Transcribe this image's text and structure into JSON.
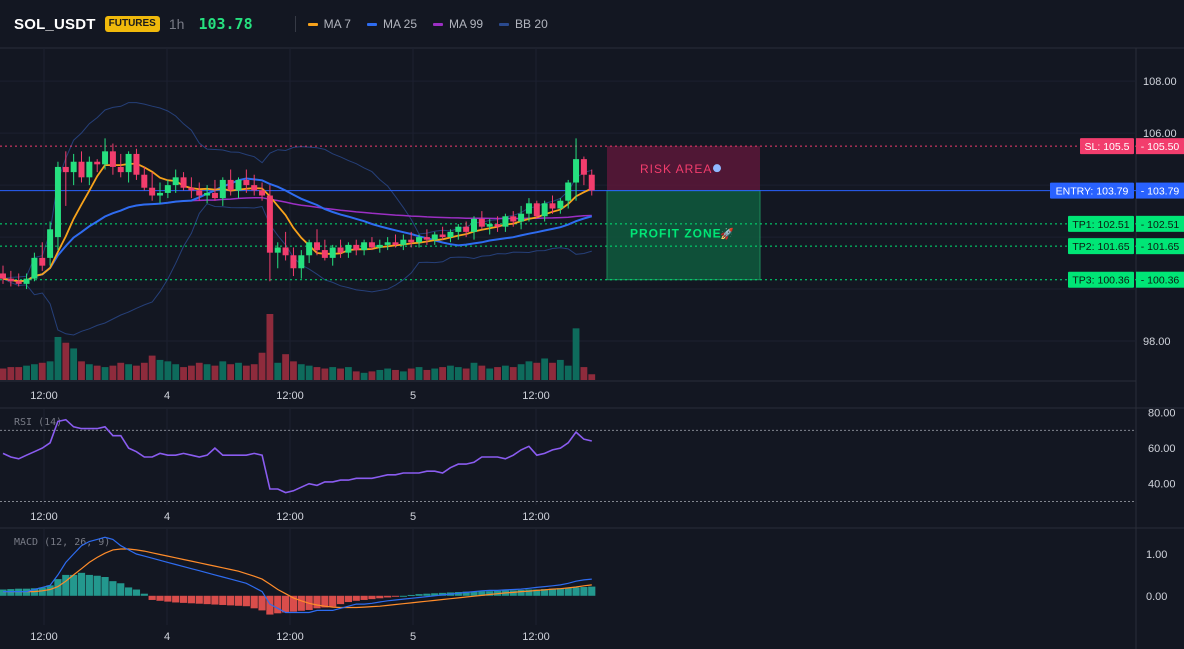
{
  "header": {
    "symbol": "SOL_USDT",
    "badge": "FUTURES",
    "interval": "1h",
    "last_price": "103.78",
    "indicators": [
      {
        "label": "MA 7",
        "color": "#f7a21b"
      },
      {
        "label": "MA 25",
        "color": "#2e6cf0"
      },
      {
        "label": "MA 99",
        "color": "#9c2fc4"
      },
      {
        "label": "BB 20",
        "color": "#2a4a8f"
      }
    ]
  },
  "main_pane": {
    "price_ticks": [
      "108.00",
      "106.00",
      "98.00"
    ],
    "x_ticks": [
      "12:00",
      "4",
      "12:00",
      "5",
      "12:00"
    ],
    "zones": {
      "risk_label": "RISK AREA",
      "profit_label": "PROFIT ZONE"
    },
    "levels": [
      {
        "key": "sl",
        "label": "SL: 105.5",
        "value": "105.50",
        "price": 105.5,
        "color": "#f23d6d",
        "text_color": "#ffffff"
      },
      {
        "key": "entry",
        "label": "ENTRY: 103.79",
        "value": "103.79",
        "price": 103.79,
        "color": "#2962ff",
        "text_color": "#ffffff"
      },
      {
        "key": "tp1",
        "label": "TP1: 102.51",
        "value": "102.51",
        "price": 102.51,
        "color": "#00e676",
        "text_color": "#0d1a12"
      },
      {
        "key": "tp2",
        "label": "TP2: 101.65",
        "value": "101.65",
        "price": 101.65,
        "color": "#00e676",
        "text_color": "#0d1a12"
      },
      {
        "key": "tp3",
        "label": "TP3: 100.36",
        "value": "100.36",
        "price": 100.36,
        "color": "#00e676",
        "text_color": "#0d1a12"
      }
    ]
  },
  "rsi_pane": {
    "title": "RSI (14)",
    "ticks": [
      "80.00",
      "60.00",
      "40.00"
    ],
    "x_ticks": [
      "12:00",
      "4",
      "12:00",
      "5",
      "12:00"
    ]
  },
  "macd_pane": {
    "title": "MACD (12, 26, 9)",
    "ticks": [
      "1.00",
      "0.00"
    ],
    "x_ticks": [
      "12:00",
      "4",
      "12:00",
      "5",
      "12:00"
    ]
  },
  "chart_data": {
    "type": "candlestick",
    "price_range": [
      96.5,
      109.2
    ],
    "candles": [
      [
        100.6,
        100.9,
        100.2,
        100.4
      ],
      [
        100.4,
        100.7,
        100.1,
        100.3
      ],
      [
        100.3,
        100.6,
        100.1,
        100.2
      ],
      [
        100.2,
        100.6,
        100.0,
        100.4
      ],
      [
        100.4,
        101.4,
        100.3,
        101.2
      ],
      [
        101.2,
        101.8,
        100.7,
        100.9
      ],
      [
        101.2,
        102.6,
        100.9,
        102.3
      ],
      [
        102.0,
        104.9,
        101.5,
        104.7
      ],
      [
        104.7,
        105.3,
        103.2,
        104.5
      ],
      [
        104.5,
        105.2,
        104.0,
        104.9
      ],
      [
        104.9,
        105.3,
        104.1,
        104.3
      ],
      [
        104.3,
        105.1,
        104.0,
        104.9
      ],
      [
        104.9,
        105.0,
        104.5,
        104.8
      ],
      [
        104.8,
        105.8,
        104.6,
        105.3
      ],
      [
        105.3,
        105.6,
        104.4,
        104.7
      ],
      [
        104.7,
        105.2,
        104.3,
        104.5
      ],
      [
        104.5,
        105.3,
        104.1,
        105.2
      ],
      [
        105.2,
        105.4,
        104.2,
        104.4
      ],
      [
        104.4,
        104.7,
        103.8,
        103.9
      ],
      [
        103.9,
        104.5,
        103.4,
        103.6
      ],
      [
        103.6,
        104.1,
        103.3,
        103.7
      ],
      [
        103.7,
        104.2,
        103.5,
        104.0
      ],
      [
        104.0,
        104.6,
        103.7,
        104.3
      ],
      [
        104.3,
        104.5,
        103.8,
        103.9
      ],
      [
        103.9,
        104.3,
        103.5,
        103.8
      ],
      [
        103.8,
        104.1,
        103.4,
        103.6
      ],
      [
        103.6,
        104.0,
        103.3,
        103.7
      ],
      [
        103.7,
        104.2,
        103.4,
        103.5
      ],
      [
        103.5,
        104.3,
        103.2,
        104.2
      ],
      [
        104.2,
        104.6,
        103.6,
        103.8
      ],
      [
        103.8,
        104.3,
        103.5,
        104.2
      ],
      [
        104.2,
        104.6,
        103.7,
        104.0
      ],
      [
        104.0,
        104.4,
        103.6,
        103.8
      ],
      [
        103.8,
        104.1,
        103.4,
        103.6
      ],
      [
        103.6,
        104.0,
        100.3,
        101.4
      ],
      [
        101.4,
        101.8,
        100.8,
        101.6
      ],
      [
        101.6,
        102.2,
        101.1,
        101.3
      ],
      [
        101.3,
        101.6,
        100.5,
        100.8
      ],
      [
        100.8,
        101.5,
        100.4,
        101.3
      ],
      [
        101.3,
        101.9,
        101.0,
        101.8
      ],
      [
        101.8,
        102.3,
        101.3,
        101.5
      ],
      [
        101.5,
        101.9,
        101.1,
        101.2
      ],
      [
        101.2,
        101.7,
        100.9,
        101.6
      ],
      [
        101.6,
        101.9,
        101.2,
        101.4
      ],
      [
        101.4,
        101.8,
        101.2,
        101.7
      ],
      [
        101.7,
        101.9,
        101.3,
        101.5
      ],
      [
        101.5,
        101.9,
        101.3,
        101.8
      ],
      [
        101.8,
        102.0,
        101.5,
        101.6
      ],
      [
        101.6,
        101.9,
        101.4,
        101.7
      ],
      [
        101.7,
        102.0,
        101.5,
        101.8
      ],
      [
        101.8,
        102.1,
        101.6,
        101.7
      ],
      [
        101.7,
        102.1,
        101.5,
        101.9
      ],
      [
        101.9,
        102.2,
        101.6,
        101.8
      ],
      [
        101.8,
        102.1,
        101.6,
        102.0
      ],
      [
        102.0,
        102.3,
        101.7,
        101.9
      ],
      [
        101.9,
        102.2,
        101.7,
        102.1
      ],
      [
        102.1,
        102.4,
        101.9,
        102.0
      ],
      [
        102.0,
        102.3,
        101.8,
        102.2
      ],
      [
        102.2,
        102.5,
        101.9,
        102.4
      ],
      [
        102.4,
        102.6,
        102.0,
        102.2
      ],
      [
        102.2,
        102.8,
        101.9,
        102.7
      ],
      [
        102.7,
        103.0,
        102.3,
        102.4
      ],
      [
        102.4,
        102.7,
        102.1,
        102.5
      ],
      [
        102.5,
        102.8,
        102.2,
        102.4
      ],
      [
        102.4,
        102.9,
        102.2,
        102.8
      ],
      [
        102.8,
        103.0,
        102.4,
        102.6
      ],
      [
        102.6,
        103.2,
        102.3,
        102.9
      ],
      [
        102.9,
        103.5,
        102.6,
        103.3
      ],
      [
        103.3,
        103.4,
        102.7,
        102.8
      ],
      [
        102.8,
        103.4,
        102.6,
        103.3
      ],
      [
        103.3,
        103.6,
        102.9,
        103.1
      ],
      [
        103.1,
        103.5,
        102.9,
        103.4
      ],
      [
        103.4,
        104.2,
        103.1,
        104.1
      ],
      [
        104.1,
        105.8,
        103.4,
        105.0
      ],
      [
        105.0,
        105.1,
        104.0,
        104.4
      ],
      [
        104.4,
        104.6,
        103.6,
        103.8
      ]
    ],
    "volume": [
      0.8,
      0.9,
      0.9,
      1.0,
      1.1,
      1.2,
      1.3,
      3.0,
      2.6,
      2.2,
      1.3,
      1.1,
      1.0,
      0.9,
      1.0,
      1.2,
      1.1,
      1.0,
      1.2,
      1.7,
      1.4,
      1.3,
      1.1,
      0.9,
      1.0,
      1.2,
      1.1,
      1.0,
      1.3,
      1.1,
      1.2,
      1.0,
      1.1,
      1.9,
      4.6,
      1.2,
      1.8,
      1.3,
      1.1,
      1.0,
      0.9,
      0.8,
      0.9,
      0.8,
      0.9,
      0.6,
      0.5,
      0.6,
      0.7,
      0.8,
      0.7,
      0.6,
      0.8,
      0.9,
      0.7,
      0.8,
      0.9,
      1.0,
      0.9,
      0.8,
      1.2,
      1.0,
      0.8,
      0.9,
      1.0,
      0.9,
      1.1,
      1.3,
      1.2,
      1.5,
      1.2,
      1.4,
      1.0,
      3.6,
      0.9,
      0.4
    ],
    "rsi": [
      57,
      55,
      54,
      56,
      58,
      60,
      63,
      75,
      76,
      72,
      71,
      71,
      71,
      72,
      67,
      67,
      60,
      58,
      55,
      55,
      57,
      56,
      56,
      57,
      56,
      55,
      56,
      60,
      56,
      56,
      56,
      56,
      57,
      56,
      37,
      37,
      35,
      36,
      38,
      40,
      39,
      41,
      41,
      42,
      42,
      43,
      43,
      43,
      44,
      45,
      45,
      46,
      46,
      46,
      47,
      47,
      46,
      49,
      51,
      51,
      52,
      55,
      55,
      55,
      54,
      56,
      59,
      61,
      56,
      57,
      59,
      60,
      63,
      69,
      65,
      64
    ],
    "macd_line": [
      0.1,
      0.1,
      0.1,
      0.1,
      0.15,
      0.2,
      0.25,
      0.5,
      0.8,
      1.0,
      1.2,
      1.3,
      1.35,
      1.4,
      1.35,
      1.2,
      1.1,
      1.0,
      0.95,
      0.9,
      0.85,
      0.8,
      0.75,
      0.7,
      0.65,
      0.6,
      0.55,
      0.5,
      0.45,
      0.4,
      0.35,
      0.3,
      0.2,
      0.1,
      -0.2,
      -0.3,
      -0.4,
      -0.4,
      -0.4,
      -0.4,
      -0.35,
      -0.35,
      -0.35,
      -0.3,
      -0.25,
      -0.2,
      -0.2,
      -0.18,
      -0.15,
      -0.12,
      -0.1,
      -0.08,
      -0.06,
      -0.04,
      -0.02,
      0.0,
      0.02,
      0.04,
      0.06,
      0.08,
      0.1,
      0.12,
      0.13,
      0.13,
      0.14,
      0.15,
      0.16,
      0.18,
      0.2,
      0.22,
      0.24,
      0.26,
      0.3,
      0.35,
      0.38,
      0.4
    ],
    "macd_signal": [
      0.1,
      0.1,
      0.1,
      0.1,
      0.1,
      0.12,
      0.15,
      0.22,
      0.35,
      0.5,
      0.65,
      0.8,
      0.92,
      1.02,
      1.1,
      1.12,
      1.12,
      1.1,
      1.07,
      1.03,
      0.99,
      0.95,
      0.91,
      0.87,
      0.83,
      0.79,
      0.75,
      0.71,
      0.67,
      0.63,
      0.59,
      0.53,
      0.47,
      0.4,
      0.28,
      0.15,
      0.05,
      -0.05,
      -0.12,
      -0.18,
      -0.22,
      -0.25,
      -0.27,
      -0.28,
      -0.28,
      -0.28,
      -0.27,
      -0.26,
      -0.25,
      -0.23,
      -0.21,
      -0.19,
      -0.17,
      -0.15,
      -0.13,
      -0.11,
      -0.09,
      -0.07,
      -0.05,
      -0.03,
      -0.01,
      0.01,
      0.03,
      0.05,
      0.07,
      0.08,
      0.1,
      0.11,
      0.13,
      0.14,
      0.16,
      0.17,
      0.19,
      0.21,
      0.24,
      0.26
    ],
    "macd_hist": [
      0.15,
      0.16,
      0.17,
      0.17,
      0.18,
      0.2,
      0.25,
      0.4,
      0.5,
      0.5,
      0.55,
      0.5,
      0.48,
      0.45,
      0.35,
      0.3,
      0.2,
      0.15,
      0.05,
      -0.1,
      -0.12,
      -0.14,
      -0.16,
      -0.17,
      -0.18,
      -0.19,
      -0.2,
      -0.21,
      -0.22,
      -0.23,
      -0.24,
      -0.25,
      -0.3,
      -0.35,
      -0.45,
      -0.42,
      -0.4,
      -0.38,
      -0.36,
      -0.34,
      -0.3,
      -0.28,
      -0.26,
      -0.2,
      -0.15,
      -0.12,
      -0.1,
      -0.08,
      -0.06,
      -0.04,
      -0.02,
      0.0,
      0.02,
      0.04,
      0.05,
      0.06,
      0.07,
      0.08,
      0.09,
      0.1,
      0.1,
      0.11,
      0.11,
      0.12,
      0.13,
      0.13,
      0.14,
      0.15,
      0.15,
      0.16,
      0.17,
      0.18,
      0.19,
      0.2,
      0.21,
      0.22
    ]
  }
}
